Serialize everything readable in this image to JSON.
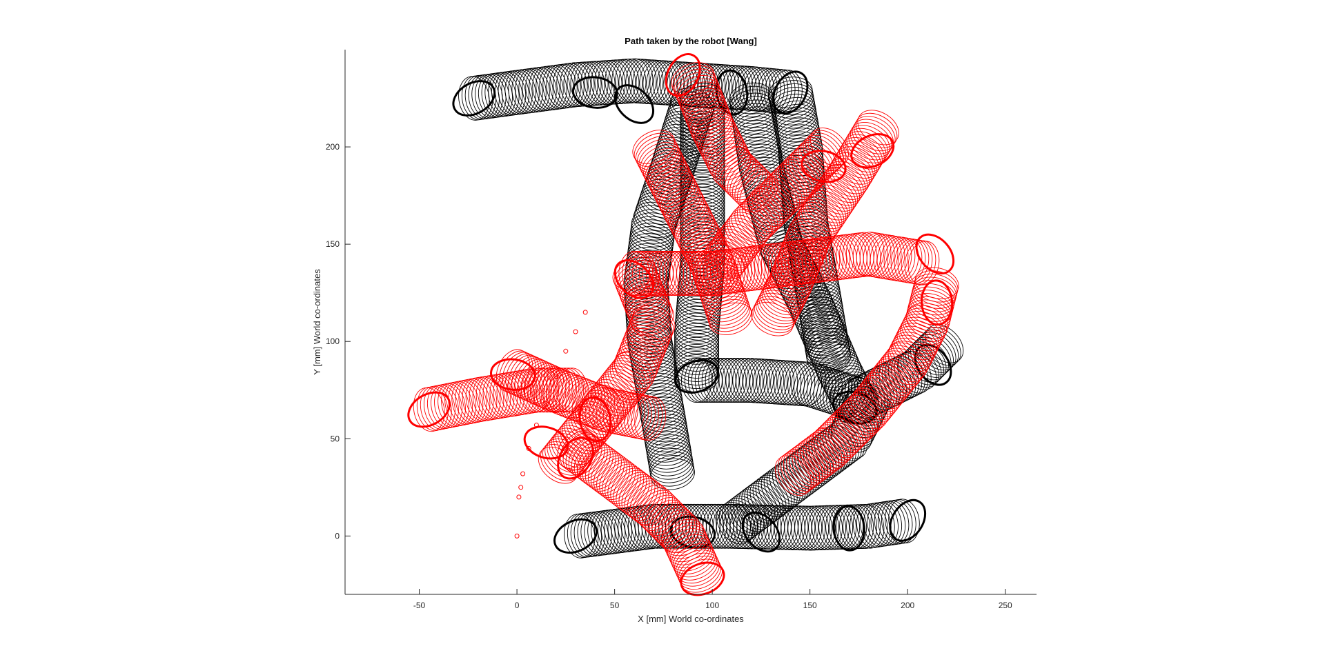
{
  "chart_data": {
    "type": "scatter",
    "title": "Path taken by the robot [Wang]",
    "xlabel": "X [mm] World co-ordinates",
    "ylabel": "Y [mm] World co-ordinates",
    "xlim": [
      -88,
      266
    ],
    "ylim": [
      -30,
      250
    ],
    "xticks": [
      -50,
      0,
      50,
      100,
      150,
      200,
      250
    ],
    "yticks": [
      0,
      50,
      100,
      150,
      200
    ],
    "grid": false,
    "legend": "none",
    "colors": {
      "black_series": "#000000",
      "red_series": "#ff0000",
      "axis": "#262626"
    },
    "marker": "ellipse",
    "series": [
      {
        "color": "#000000",
        "paths": [
          [
            [
              -22,
              225
            ],
            [
              0,
              228
            ],
            [
              30,
              232
            ],
            [
              60,
              234
            ],
            [
              90,
              232
            ],
            [
              120,
              230
            ],
            [
              140,
              228
            ]
          ],
          [
            [
              32,
              0
            ],
            [
              70,
              5
            ],
            [
              110,
              5
            ],
            [
              150,
              4
            ],
            [
              180,
              5
            ],
            [
              200,
              8
            ]
          ],
          [
            [
              90,
              222
            ],
            [
              80,
              190
            ],
            [
              70,
              160
            ],
            [
              66,
              130
            ],
            [
              68,
              100
            ],
            [
              75,
              60
            ],
            [
              80,
              30
            ]
          ],
          [
            [
              120,
              225
            ],
            [
              125,
              190
            ],
            [
              135,
              150
            ],
            [
              150,
              120
            ],
            [
              165,
              85
            ],
            [
              175,
              65
            ]
          ],
          [
            [
              95,
              225
            ],
            [
              95,
              180
            ],
            [
              95,
              140
            ],
            [
              92,
              105
            ],
            [
              92,
              80
            ]
          ],
          [
            [
              92,
              80
            ],
            [
              120,
              80
            ],
            [
              150,
              78
            ],
            [
              175,
              70
            ],
            [
              205,
              85
            ],
            [
              220,
              100
            ]
          ],
          [
            [
              180,
              70
            ],
            [
              170,
              50
            ],
            [
              150,
              35
            ],
            [
              130,
              20
            ],
            [
              110,
              5
            ]
          ],
          [
            [
              140,
              228
            ],
            [
              145,
              200
            ],
            [
              148,
              160
            ],
            [
              155,
              120
            ],
            [
              160,
              90
            ]
          ]
        ],
        "emphasized": [
          [
            -22,
            225
          ],
          [
            40,
            228
          ],
          [
            60,
            222
          ],
          [
            110,
            228
          ],
          [
            140,
            228
          ],
          [
            30,
            0
          ],
          [
            90,
            2
          ],
          [
            125,
            2
          ],
          [
            170,
            4
          ],
          [
            200,
            8
          ],
          [
            92,
            82
          ],
          [
            173,
            66
          ],
          [
            213,
            88
          ]
        ]
      },
      {
        "color": "#ff0000",
        "paths": [
          [
            [
              -45,
              65
            ],
            [
              -20,
              70
            ],
            [
              10,
              75
            ],
            [
              30,
              75
            ]
          ],
          [
            [
              -2,
              85
            ],
            [
              20,
              75
            ],
            [
              45,
              65
            ],
            [
              70,
              60
            ]
          ],
          [
            [
              60,
              135
            ],
            [
              70,
              110
            ],
            [
              60,
              85
            ],
            [
              40,
              60
            ],
            [
              20,
              35
            ]
          ],
          [
            [
              90,
              235
            ],
            [
              100,
              210
            ],
            [
              110,
              190
            ],
            [
              125,
              175
            ]
          ],
          [
            [
              60,
              135
            ],
            [
              100,
              135
            ],
            [
              140,
              140
            ],
            [
              180,
              145
            ],
            [
              210,
              140
            ]
          ],
          [
            [
              30,
              45
            ],
            [
              50,
              30
            ],
            [
              70,
              15
            ],
            [
              85,
              0
            ],
            [
              95,
              -22
            ]
          ],
          [
            [
              185,
              210
            ],
            [
              170,
              185
            ],
            [
              150,
              155
            ],
            [
              140,
              130
            ],
            [
              130,
              110
            ]
          ],
          [
            [
              215,
              130
            ],
            [
              210,
              110
            ],
            [
              200,
              90
            ],
            [
              180,
              65
            ],
            [
              160,
              45
            ],
            [
              140,
              30
            ]
          ],
          [
            [
              70,
              200
            ],
            [
              85,
              170
            ],
            [
              100,
              140
            ],
            [
              110,
              110
            ]
          ],
          [
            [
              160,
              200
            ],
            [
              140,
              180
            ],
            [
              120,
              160
            ],
            [
              105,
              140
            ]
          ]
        ],
        "emphasized": [
          [
            -45,
            65
          ],
          [
            -2,
            83
          ],
          [
            60,
            132
          ],
          [
            40,
            60
          ],
          [
            85,
            237
          ],
          [
            182,
            198
          ],
          [
            157,
            190
          ],
          [
            214,
            145
          ],
          [
            215,
            120
          ],
          [
            30,
            40
          ],
          [
            95,
            -22
          ],
          [
            15,
            48
          ]
        ],
        "small_markers": [
          [
            0,
            0
          ],
          [
            1,
            20
          ],
          [
            2,
            25
          ],
          [
            3,
            32
          ],
          [
            6,
            45
          ],
          [
            10,
            57
          ],
          [
            15,
            68
          ],
          [
            20,
            82
          ],
          [
            25,
            95
          ],
          [
            30,
            105
          ],
          [
            35,
            115
          ]
        ]
      }
    ]
  }
}
